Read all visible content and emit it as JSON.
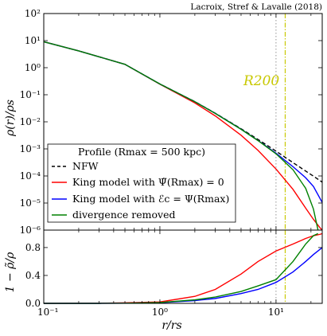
{
  "chart_data": [
    {
      "panel": "top",
      "type": "line",
      "xscale": "log",
      "yscale": "log",
      "xlim": [
        0.1,
        25
      ],
      "ylim": [
        1e-06,
        100
      ],
      "ylabel": "ρ(r)/ρs",
      "annotation": "Lacroix, Stref & Lavalle (2018)",
      "vline_label": "R200",
      "vline_x": 12,
      "dotted_vline_x": 10,
      "y_ticks": [
        {
          "value": 100,
          "label": "10²"
        },
        {
          "value": 10,
          "label": "10¹"
        },
        {
          "value": 1,
          "label": "10⁰"
        },
        {
          "value": 0.1,
          "label": "10⁻¹"
        },
        {
          "value": 0.01,
          "label": "10⁻²"
        },
        {
          "value": 0.001,
          "label": "10⁻³"
        },
        {
          "value": 0.0001,
          "label": "10⁻⁴"
        },
        {
          "value": 1e-05,
          "label": "10⁻⁵"
        },
        {
          "value": 1e-06,
          "label": "10⁻⁶"
        }
      ],
      "legend": {
        "title": "Profile (Rmax = 500 kpc)",
        "position": "lower-left",
        "entries": [
          "NFW",
          "King model with Ψ̃(Rmax) = 0",
          "King model with ℰc = Ψ(Rmax)",
          "divergence removed"
        ]
      },
      "series": [
        {
          "name": "NFW",
          "color": "#000000",
          "style": "dashed",
          "x": [
            0.1,
            0.2,
            0.5,
            1,
            2,
            3,
            5,
            7,
            10,
            14,
            18,
            21,
            25
          ],
          "y": [
            9.09,
            4.17,
            1.33,
            0.25,
            0.0556,
            0.0208,
            0.00556,
            0.00223,
            0.000826,
            0.000311,
            0.000152,
            9.85e-05,
            5.92e-05
          ]
        },
        {
          "name": "King model with Ψ̃(Rmax) = 0",
          "color": "#ff0000",
          "style": "solid",
          "x": [
            0.1,
            0.2,
            0.5,
            1,
            2,
            3,
            5,
            7,
            10,
            14,
            18,
            21,
            24,
            25
          ],
          "y": [
            9.09,
            4.17,
            1.33,
            0.245,
            0.05,
            0.0165,
            0.0032,
            0.00088,
            0.00018,
            3.2e-05,
            6.5e-06,
            2.5e-06,
            1.2e-06,
            1e-06
          ]
        },
        {
          "name": "King model with ℰc = Ψ(Rmax)",
          "color": "#0000ff",
          "style": "solid",
          "x": [
            0.1,
            0.2,
            0.5,
            1,
            2,
            3,
            5,
            7,
            10,
            14,
            18,
            21,
            25
          ],
          "y": [
            9.09,
            4.17,
            1.33,
            0.25,
            0.0554,
            0.0205,
            0.00535,
            0.00205,
            0.00069,
            0.00022,
            8.6e-05,
            4.1e-05,
            1.05e-05
          ]
        },
        {
          "name": "divergence removed",
          "color": "#008000",
          "style": "solid",
          "x": [
            0.1,
            0.2,
            0.5,
            1,
            2,
            3,
            5,
            7,
            10,
            14,
            18,
            21,
            23
          ],
          "y": [
            9.09,
            4.17,
            1.33,
            0.25,
            0.0554,
            0.0204,
            0.0053,
            0.00202,
            0.00066,
            0.00017,
            3.5e-05,
            6e-06,
            1e-06
          ]
        }
      ]
    },
    {
      "panel": "bottom",
      "type": "line",
      "xscale": "log",
      "yscale": "linear",
      "xlim": [
        0.1,
        25
      ],
      "ylim": [
        0,
        1.05
      ],
      "xlabel": "r/rs",
      "ylabel": "1 − ρ̃/ρ",
      "x_ticks": [
        {
          "value": 0.1,
          "label": "10⁻¹"
        },
        {
          "value": 1,
          "label": "10⁰"
        },
        {
          "value": 10,
          "label": "10¹"
        }
      ],
      "y_ticks": [
        {
          "value": 0,
          "label": "0.0"
        },
        {
          "value": 0.4,
          "label": "0.4"
        },
        {
          "value": 0.8,
          "label": "0.8"
        }
      ],
      "series": [
        {
          "name": "King model with Ψ̃(Rmax) = 0",
          "color": "#ff0000",
          "style": "solid",
          "x": [
            0.1,
            0.3,
            0.5,
            1,
            2,
            3,
            5,
            7,
            10,
            14,
            18,
            21,
            24,
            25
          ],
          "y": [
            0,
            0.002,
            0.008,
            0.02,
            0.1,
            0.2,
            0.42,
            0.6,
            0.75,
            0.85,
            0.93,
            0.97,
            0.99,
            1.0
          ]
        },
        {
          "name": "King model with ℰc = Ψ(Rmax)",
          "color": "#0000ff",
          "style": "solid",
          "x": [
            0.1,
            0.3,
            0.5,
            1,
            2,
            3,
            5,
            7,
            10,
            14,
            18,
            21,
            25
          ],
          "y": [
            0,
            0,
            0.002,
            0.01,
            0.04,
            0.07,
            0.14,
            0.2,
            0.3,
            0.45,
            0.6,
            0.7,
            0.8
          ]
        },
        {
          "name": "divergence removed",
          "color": "#008000",
          "style": "solid",
          "x": [
            0.1,
            0.3,
            0.5,
            1,
            2,
            3,
            5,
            7,
            10,
            14,
            18,
            21,
            23
          ],
          "y": [
            0,
            0,
            0.002,
            0.012,
            0.05,
            0.09,
            0.17,
            0.25,
            0.34,
            0.6,
            0.85,
            0.97,
            1.0
          ]
        }
      ]
    }
  ]
}
